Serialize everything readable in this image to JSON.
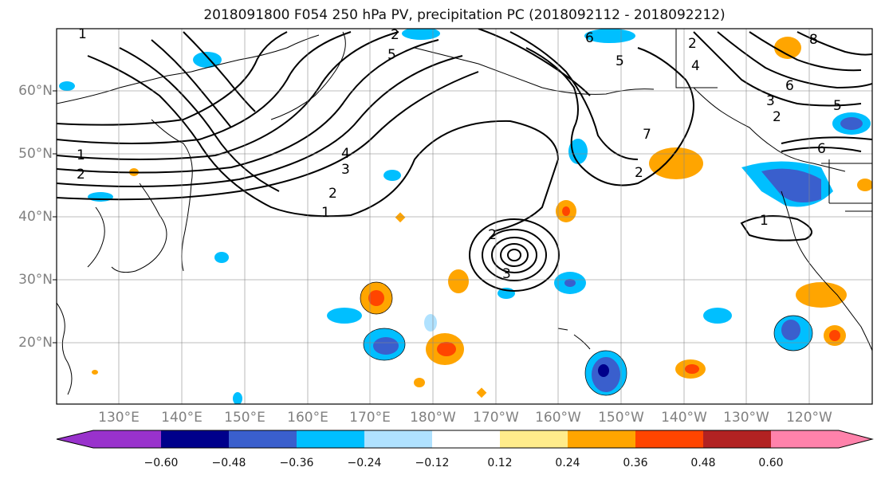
{
  "title": "2018091800 F054 250 hPa PV, precipitation PC (2018092112 - 2018092212)",
  "lat_labels": [
    "60°N",
    "50°N",
    "40°N",
    "30°N",
    "20°N"
  ],
  "lon_labels": [
    "130°E",
    "140°E",
    "150°E",
    "160°E",
    "170°E",
    "180°W",
    "170°W",
    "160°W",
    "150°W",
    "140°W",
    "130°W",
    "120°W"
  ],
  "colorbar": {
    "ticks": [
      "−0.60",
      "−0.48",
      "−0.36",
      "−0.24",
      "−0.12",
      "0.12",
      "0.24",
      "0.36",
      "0.48",
      "0.60"
    ],
    "colors": [
      "#9932CC",
      "#00008B",
      "#3A5FCD",
      "#00BFFF",
      "#B0E2FF",
      "#FFFFFF",
      "#FFEC8B",
      "#FFA500",
      "#FF4500",
      "#B22222",
      "#FF82AB"
    ]
  },
  "pv_contour_labels": [
    "1",
    "2",
    "3",
    "4",
    "5",
    "6",
    "7",
    "8"
  ]
}
